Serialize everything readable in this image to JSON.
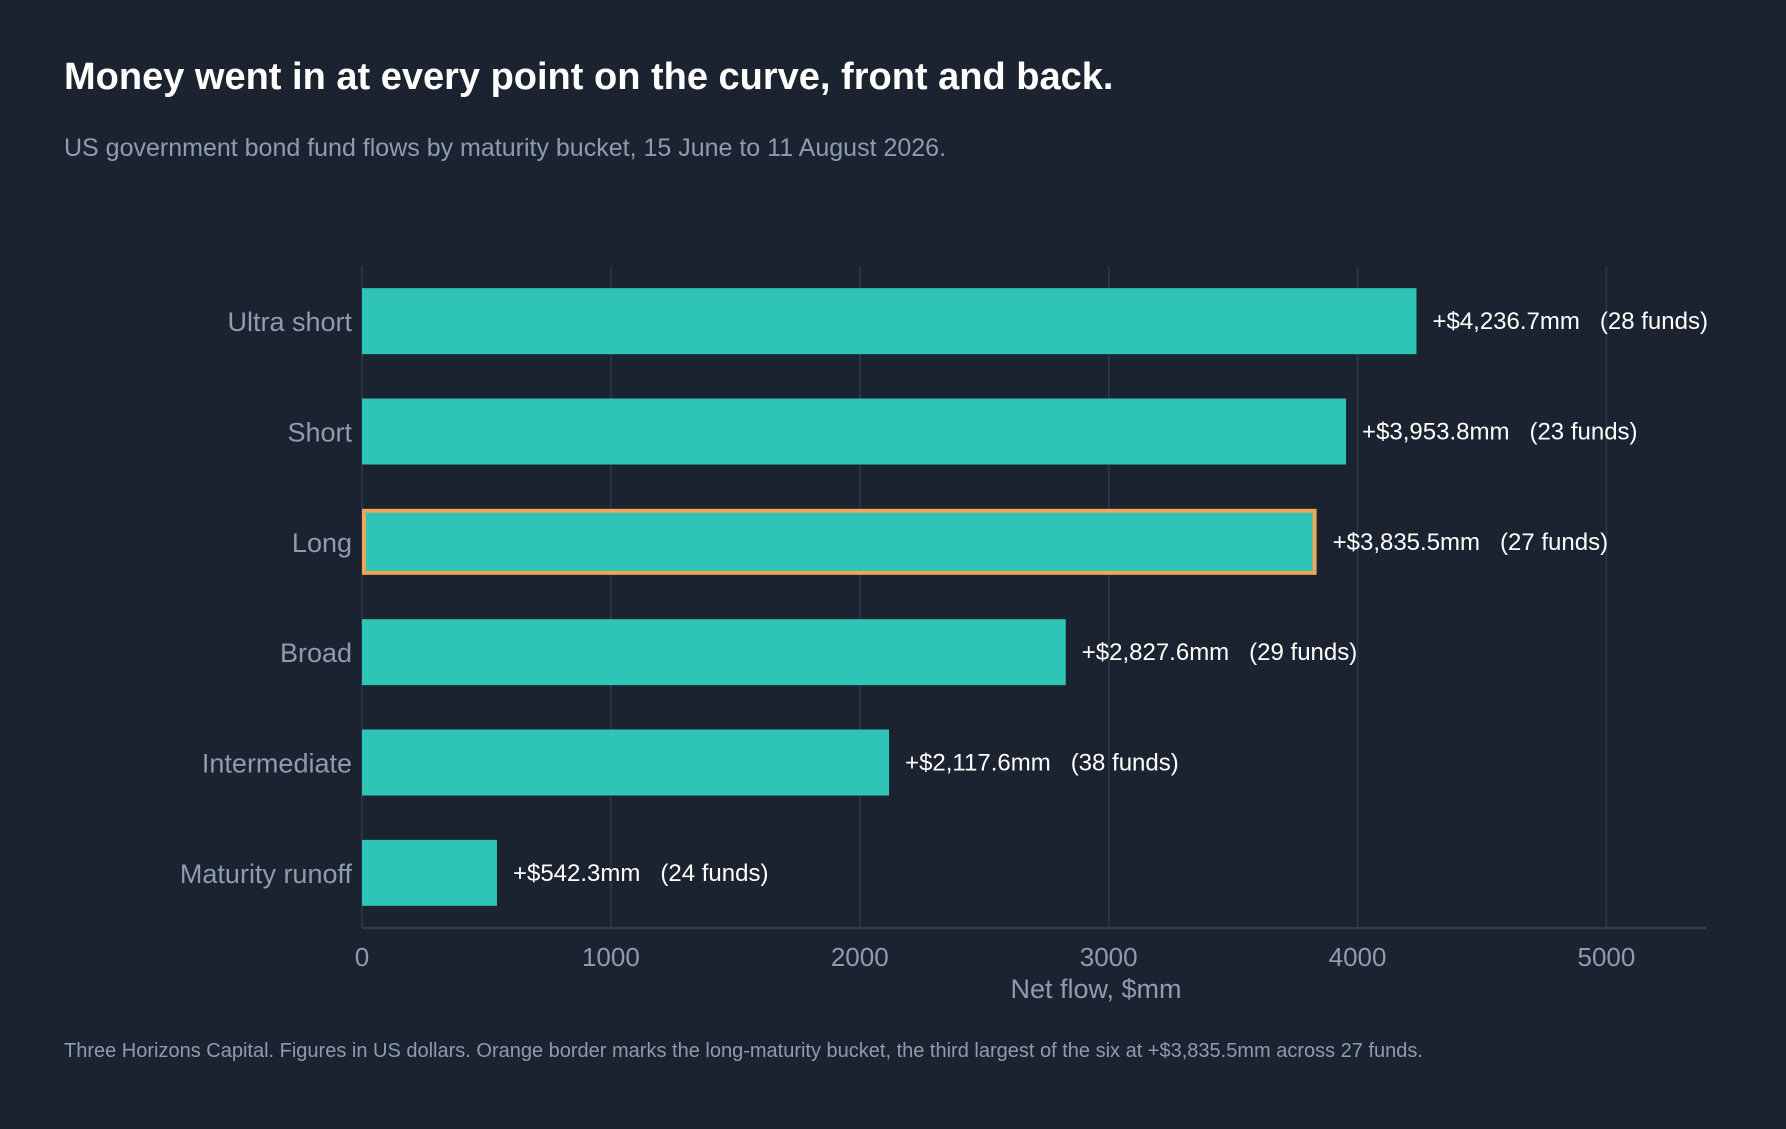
{
  "header": {
    "title": "Money went in at every point on the curve, front and back.",
    "subtitle": "US government bond fund flows by maturity bucket, 15 June to 11 August 2026."
  },
  "footer": {
    "note": "Three Horizons Capital. Figures in US dollars. Orange border marks the long-maturity bucket, the third largest of the six at +$3,835.5mm across 27 funds."
  },
  "colors": {
    "background": "#1b2331",
    "bar": "#2ec4b6",
    "highlight_border": "#f2a65a",
    "grid": "#2e3848",
    "axis_text": "#8e9bb0",
    "label_text": "#ffffff"
  },
  "chart_data": {
    "type": "bar",
    "orientation": "horizontal",
    "title": "Money went in at every point on the curve, front and back.",
    "subtitle": "US government bond fund flows by maturity bucket, 15 June to 11 August 2026.",
    "xlabel": "Net flow, $mm",
    "ylabel": "",
    "xlim": [
      0,
      5400
    ],
    "xticks": [
      0,
      1000,
      2000,
      3000,
      4000,
      5000
    ],
    "grid": "vertical",
    "legend": "none",
    "highlight": "Long",
    "categories": [
      "Ultra short",
      "Short",
      "Long",
      "Broad",
      "Intermediate",
      "Maturity runoff"
    ],
    "values": [
      4236.7,
      3953.8,
      3835.5,
      2827.6,
      2117.6,
      542.3
    ],
    "value_labels": [
      "+$4,236.7mm",
      "+$3,953.8mm",
      "+$3,835.5mm",
      "+$2,827.6mm",
      "+$2,117.6mm",
      "+$542.3mm"
    ],
    "fund_labels": [
      "(28 funds)",
      "(23 funds)",
      "(27 funds)",
      "(29 funds)",
      "(38 funds)",
      "(24 funds)"
    ]
  }
}
